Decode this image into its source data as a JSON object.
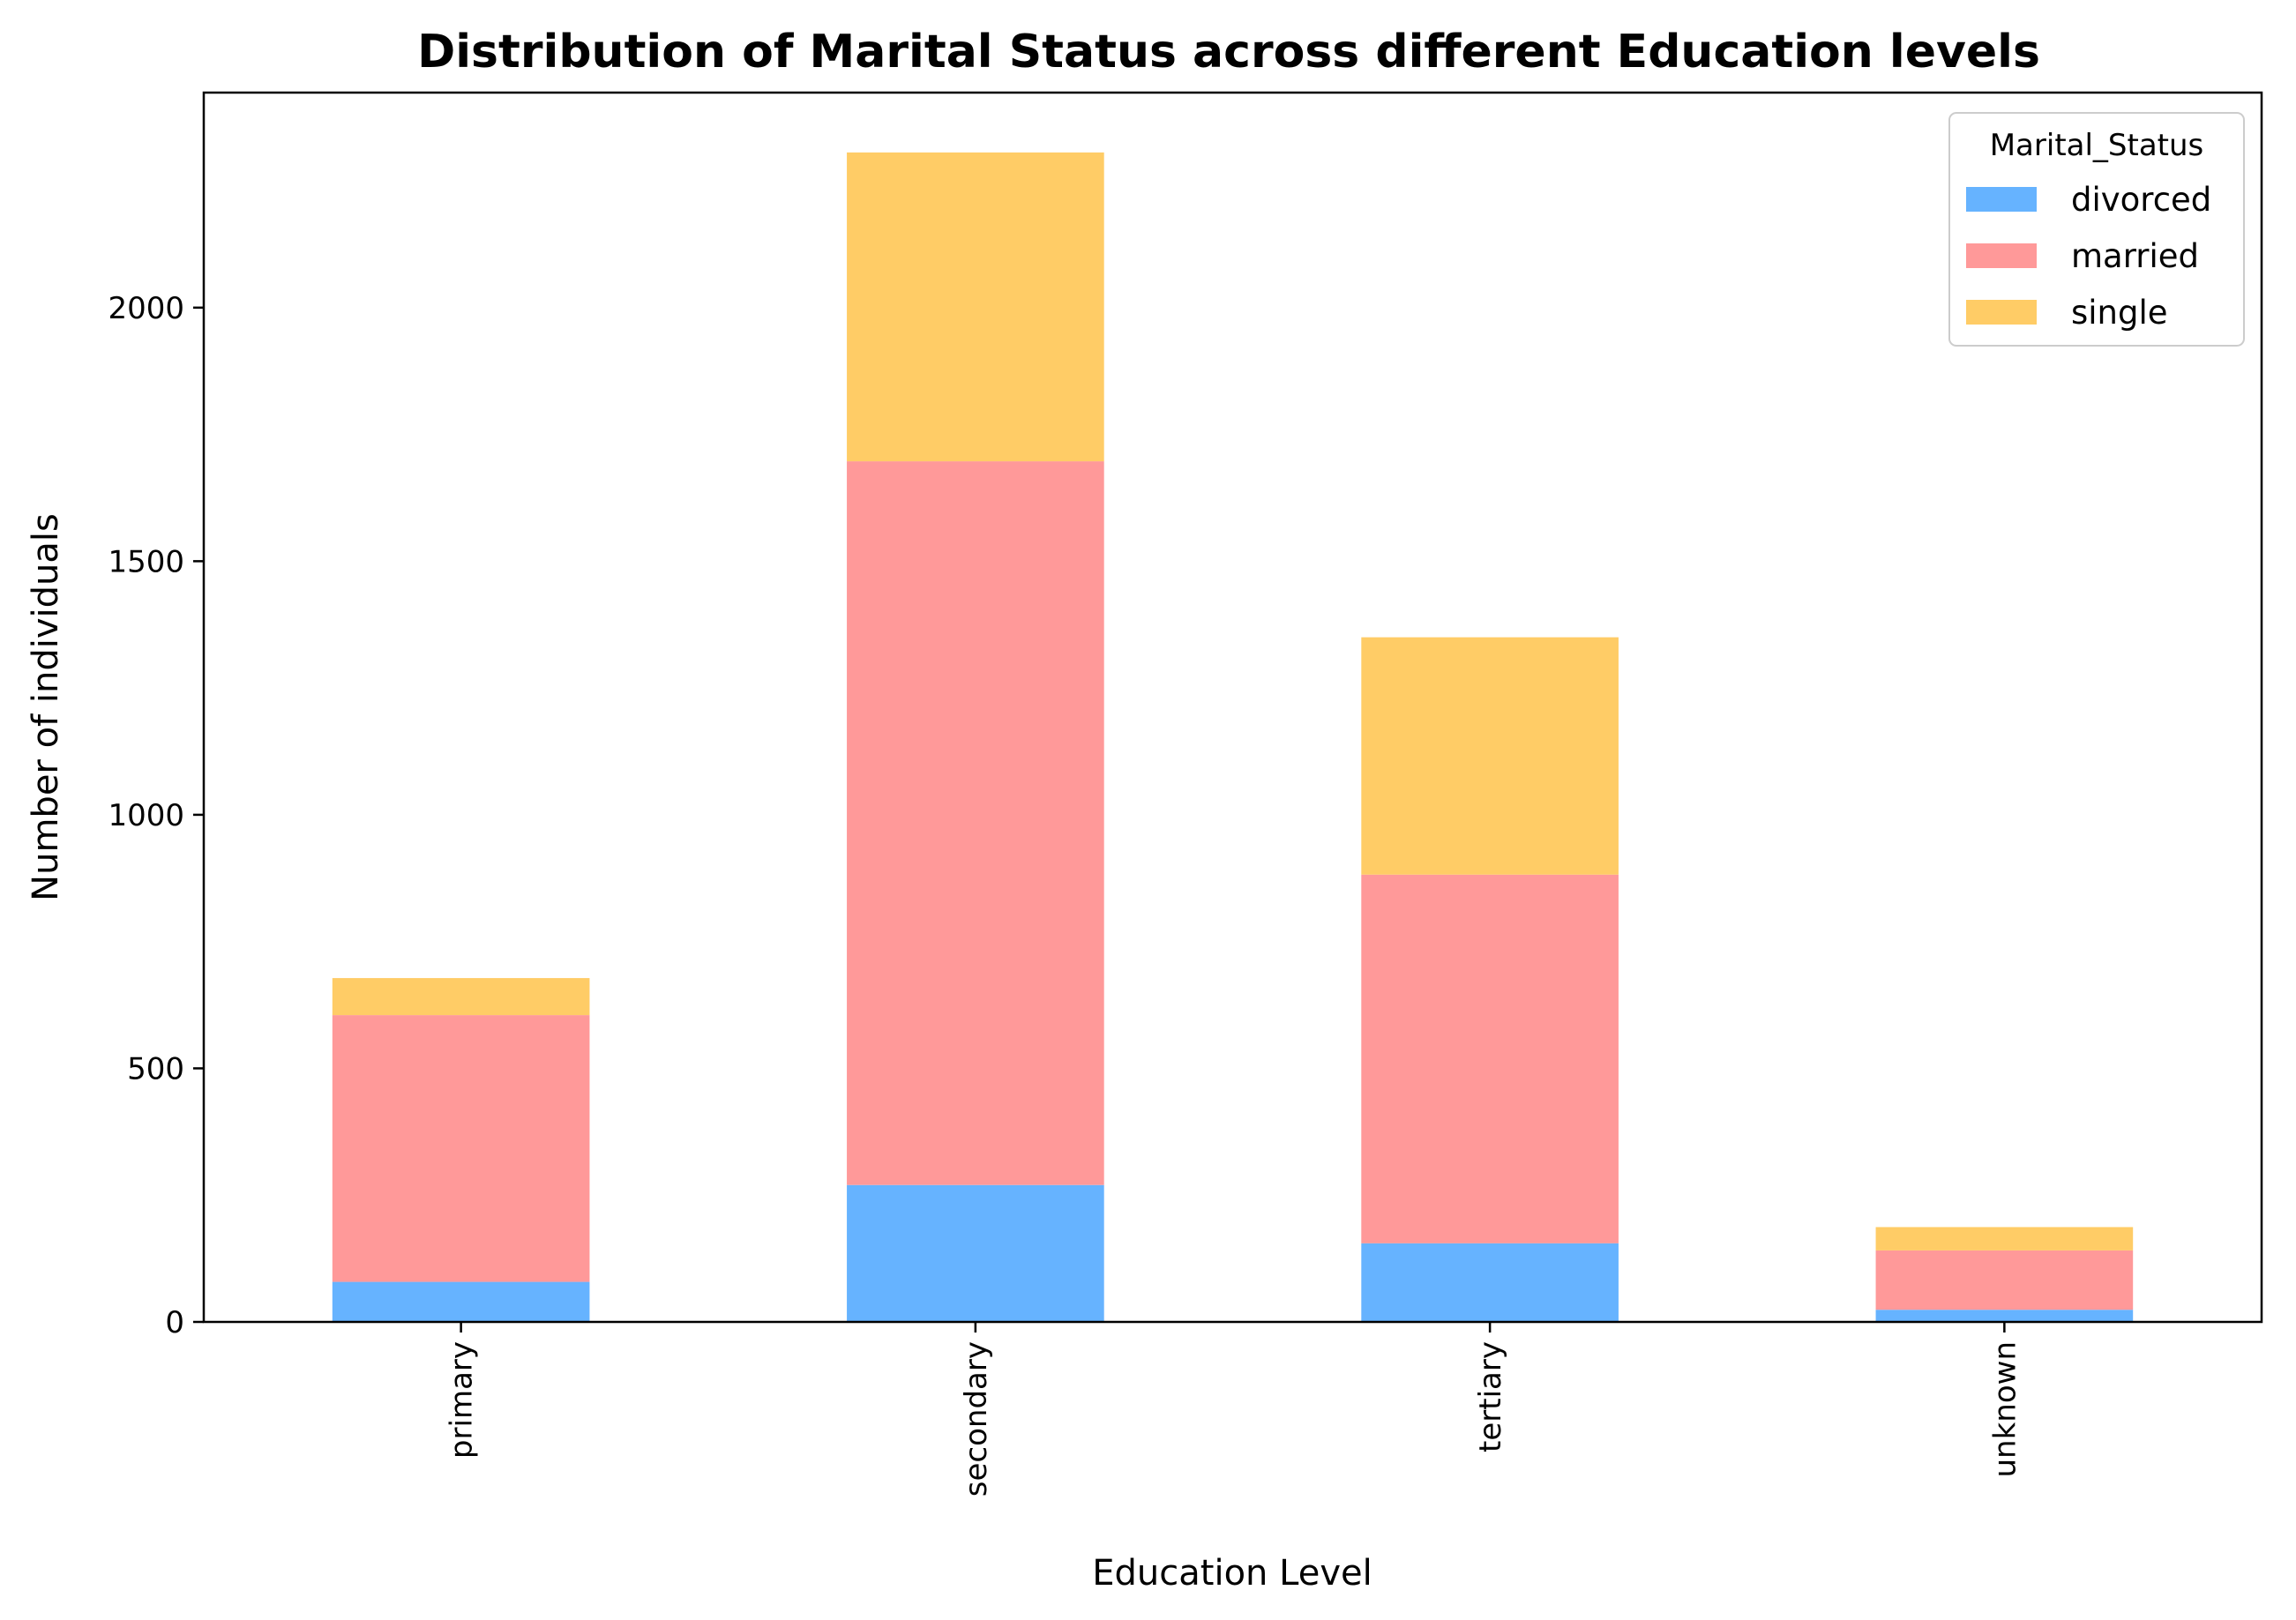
{
  "chart_data": {
    "type": "bar",
    "stacked": true,
    "title": "Distribution of Marital Status across different Education levels",
    "xlabel": "Education Level",
    "ylabel": "Number of individuals",
    "categories": [
      "primary",
      "secondary",
      "tertiary",
      "unknown"
    ],
    "series": [
      {
        "name": "divorced",
        "color": "#66b3ff",
        "values": [
          79,
          270,
          155,
          24
        ]
      },
      {
        "name": "married",
        "color": "#ff9999",
        "values": [
          526,
          1427,
          727,
          117
        ]
      },
      {
        "name": "single",
        "color": "#ffcc66",
        "values": [
          73,
          609,
          468,
          46
        ]
      }
    ],
    "ylim": [
      0,
      2424
    ],
    "yticks": [
      0,
      500,
      1000,
      1500,
      2000
    ],
    "grid": false,
    "legend": {
      "title": "Marital_Status",
      "placement": "top-right"
    }
  }
}
